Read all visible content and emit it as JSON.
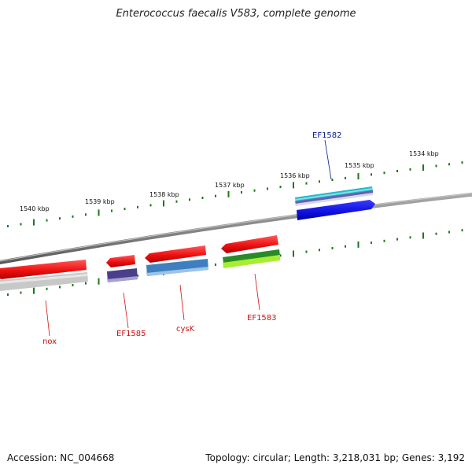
{
  "title": "Enterococcus faecalis V583, complete genome",
  "footer": {
    "accession": "Accession: NC_004668",
    "summary": "Topology: circular; Length: 3,218,031 bp; Genes: 3,192"
  },
  "scale_labels": [
    "1540 kbp",
    "1539 kbp",
    "1538 kbp",
    "1537 kbp",
    "1536 kbp",
    "1535 kbp",
    "1534 kbp"
  ],
  "gene_labels": [
    {
      "name": "EF1582",
      "color": "#0b1a8c",
      "strand": "+"
    },
    {
      "name": "nox",
      "color": "#d01010",
      "strand": "-"
    },
    {
      "name": "EF1585",
      "color": "#d01010",
      "strand": "-"
    },
    {
      "name": "cysK",
      "color": "#d01010",
      "strand": "-"
    },
    {
      "name": "EF1583",
      "color": "#d01010",
      "strand": "-"
    }
  ],
  "colors": {
    "backbone": "#777777",
    "tick": "#1a7a1a",
    "cds": "#ee1111",
    "forward_gene": "#1010e0",
    "purple_gene": "#4a3f8a",
    "steelblue_gene": "#3f7fbf",
    "green_gene": "#2a8a2a",
    "lime_gene": "#a8ee30",
    "cyan_gene": "#22b8c8",
    "grey_gene": "#c0c0c0"
  }
}
